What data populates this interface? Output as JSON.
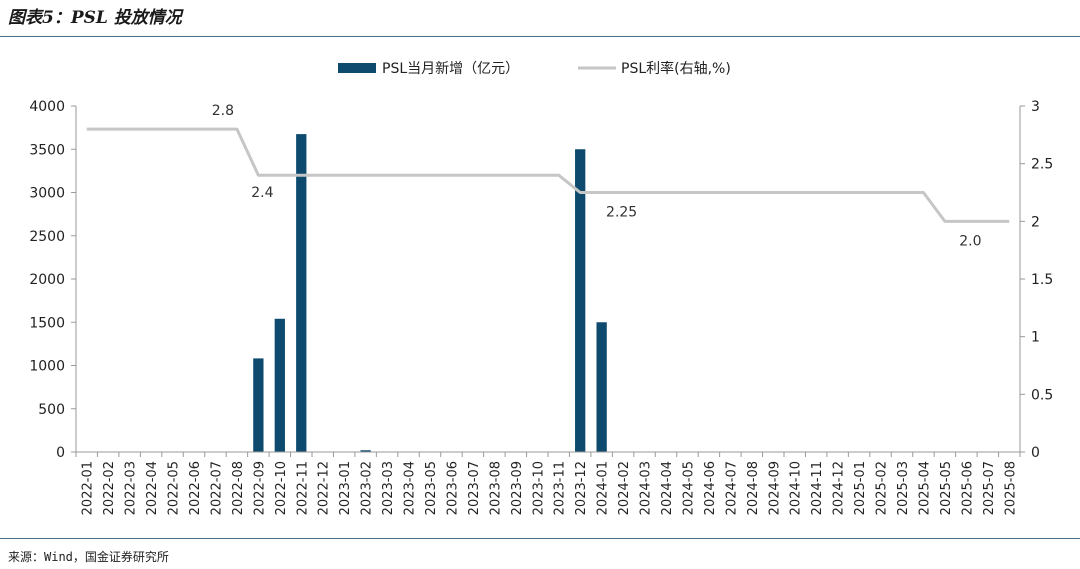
{
  "figure": {
    "title": "图表5：PSL 投放情况",
    "source": "来源：Wind，国金证券研究所"
  },
  "colors": {
    "bar": "#0d4a6e",
    "line": "#c6c6c6",
    "axis": "#9a9a9a",
    "rule": "#4a6d8c"
  },
  "chart_data": {
    "type": "bar+line",
    "categories": [
      "2022-01",
      "2022-02",
      "2022-03",
      "2022-04",
      "2022-05",
      "2022-06",
      "2022-07",
      "2022-08",
      "2022-09",
      "2022-10",
      "2022-11",
      "2022-12",
      "2023-01",
      "2023-02",
      "2023-03",
      "2023-04",
      "2023-05",
      "2023-06",
      "2023-07",
      "2023-08",
      "2023-09",
      "2023-10",
      "2023-11",
      "2023-12",
      "2024-01",
      "2024-02",
      "2024-03",
      "2024-04",
      "2024-05",
      "2024-06",
      "2024-07",
      "2024-08",
      "2024-09",
      "2024-10",
      "2024-11",
      "2024-12",
      "2025-01",
      "2025-02",
      "2025-03",
      "2025-04",
      "2025-05",
      "2025-06",
      "2025-07",
      "2025-08"
    ],
    "series": [
      {
        "name": "PSL当月新增（亿元）",
        "kind": "bar",
        "axis": "left",
        "values": [
          0,
          0,
          0,
          0,
          0,
          0,
          0,
          0,
          1082,
          1540,
          3675,
          0,
          0,
          20,
          0,
          0,
          0,
          0,
          0,
          0,
          0,
          0,
          0,
          3500,
          1500,
          0,
          0,
          0,
          0,
          0,
          0,
          0,
          0,
          0,
          0,
          0,
          0,
          0,
          0,
          0,
          0,
          0,
          0,
          0
        ]
      },
      {
        "name": "PSL利率(右轴,%)",
        "kind": "line",
        "axis": "right",
        "values": [
          2.8,
          2.8,
          2.8,
          2.8,
          2.8,
          2.8,
          2.8,
          2.8,
          2.4,
          2.4,
          2.4,
          2.4,
          2.4,
          2.4,
          2.4,
          2.4,
          2.4,
          2.4,
          2.4,
          2.4,
          2.4,
          2.4,
          2.4,
          2.25,
          2.25,
          2.25,
          2.25,
          2.25,
          2.25,
          2.25,
          2.25,
          2.25,
          2.25,
          2.25,
          2.25,
          2.25,
          2.25,
          2.25,
          2.25,
          2.25,
          2.0,
          2.0,
          2.0,
          2.0
        ]
      }
    ],
    "y_left": {
      "min": 0,
      "max": 4000,
      "ticks": [
        0,
        500,
        1000,
        1500,
        2000,
        2500,
        3000,
        3500,
        4000
      ]
    },
    "y_right": {
      "min": 0,
      "max": 3,
      "ticks": [
        0,
        0.5,
        1,
        1.5,
        2,
        2.5,
        3
      ]
    },
    "annotations": [
      {
        "text": "2.8",
        "index": 7,
        "series": 1
      },
      {
        "text": "2.4",
        "index": 8,
        "series": 1
      },
      {
        "text": "2.25",
        "index": 24,
        "series": 1
      },
      {
        "text": "2.0",
        "index": 41,
        "series": 1
      }
    ],
    "legend_position": "top-center",
    "grid": false
  }
}
